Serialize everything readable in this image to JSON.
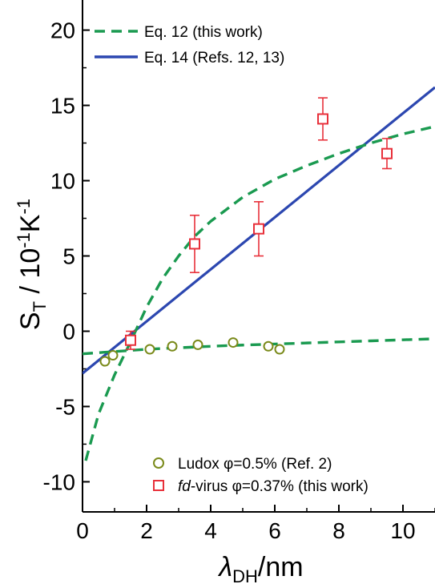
{
  "chart_data": {
    "type": "scatter",
    "xlabel_symbol": "λ",
    "xlabel_sub": "DH",
    "xlabel_unit": "/nm",
    "ylabel_main": "S",
    "ylabel_sub": "T",
    "ylabel_mid": " / 10",
    "ylabel_exp1": "-1",
    "ylabel_k": "K",
    "ylabel_exp2": "-1",
    "xlim": [
      0,
      11
    ],
    "ylim": [
      -12,
      22
    ],
    "xticks": [
      "0",
      "2",
      "4",
      "6",
      "8",
      "10"
    ],
    "yticks": [
      "-10",
      "-5",
      "0",
      "5",
      "10",
      "15",
      "20"
    ],
    "grid": false,
    "colors": {
      "eq12": "#1a9a50",
      "eq14": "#2c47b0",
      "ludox": "#7a8a1a",
      "fd": "#e8303a",
      "fd_err": "#e8303a"
    },
    "series": [
      {
        "name": "Eq. 12 (this work)",
        "kind": "dashed-line",
        "curves": [
          {
            "x": [
              0.1,
              0.5,
              1.0,
              1.5,
              2.0,
              2.5,
              3.0,
              3.5,
              4.0,
              5.0,
              6.0,
              7.0,
              8.0,
              9.0,
              10.0,
              11.0
            ],
            "y": [
              -8.6,
              -5.5,
              -2.9,
              -0.7,
              1.6,
              3.5,
              5.0,
              6.3,
              7.3,
              8.9,
              10.1,
              11.0,
              11.8,
              12.5,
              13.1,
              13.6
            ]
          },
          {
            "x": [
              0.0,
              1.0,
              2.0,
              3.0,
              4.0,
              5.0,
              6.0,
              7.0,
              8.0,
              9.0,
              10.0,
              11.0
            ],
            "y": [
              -1.5,
              -1.35,
              -1.2,
              -1.1,
              -1.0,
              -0.92,
              -0.85,
              -0.78,
              -0.71,
              -0.64,
              -0.57,
              -0.5
            ]
          }
        ]
      },
      {
        "name": "Eq. 14 (Refs. 12, 13)",
        "kind": "line",
        "x": [
          0,
          11
        ],
        "y": [
          -2.8,
          16.2
        ]
      },
      {
        "name_pre": "Ludox ",
        "name_phi": "φ",
        "name_post": "=0.5% (Ref. 2)",
        "kind": "circle",
        "x": [
          0.7,
          0.95,
          2.1,
          2.8,
          3.6,
          4.7,
          5.8,
          6.15
        ],
        "y": [
          -2.0,
          -1.6,
          -1.2,
          -1.0,
          -0.9,
          -0.75,
          -1.0,
          -1.2
        ]
      },
      {
        "name_it": "fd",
        "name_pre": "-virus ",
        "name_phi": "φ",
        "name_post": "=0.37% (this work)",
        "kind": "square",
        "x": [
          1.5,
          3.5,
          5.5,
          7.5,
          9.5
        ],
        "y": [
          -0.6,
          5.8,
          6.8,
          14.1,
          11.8
        ],
        "err": [
          0.6,
          1.9,
          1.8,
          1.4,
          1.0
        ]
      }
    ]
  }
}
